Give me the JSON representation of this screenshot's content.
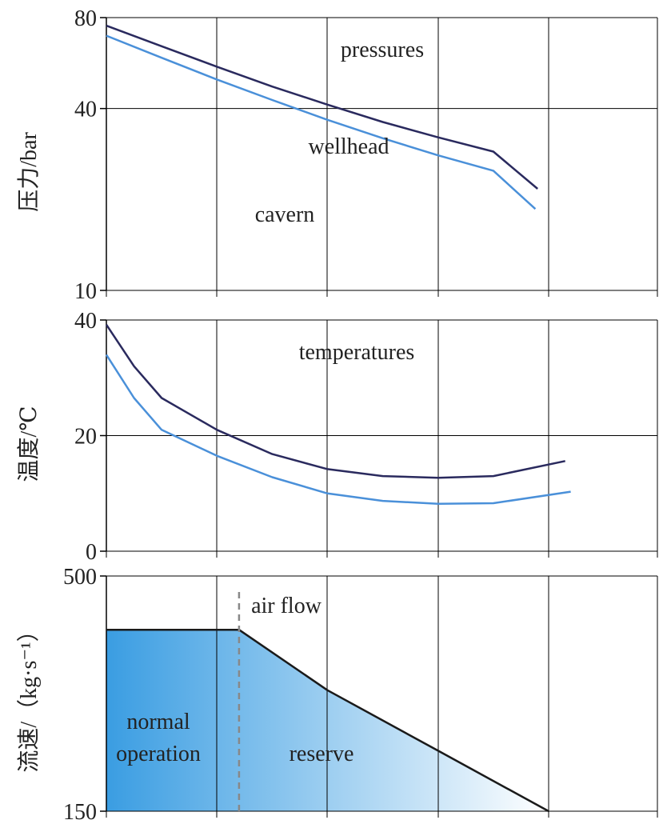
{
  "chart_data": [
    {
      "type": "line",
      "ylabel": "压力/bar",
      "ylim": [
        10,
        80
      ],
      "yticks": [
        80,
        40,
        10
      ],
      "grid": true,
      "annotations": {
        "title": "pressures",
        "wellhead": "wellhead",
        "cavern": "cavern"
      },
      "series": [
        {
          "name": "wellhead",
          "color": "#2a2a5e",
          "x": [
            0,
            0.5,
            1,
            1.5,
            2,
            2.5,
            3,
            3.5,
            3.9
          ],
          "y": [
            75.2,
            64.3,
            55.0,
            47.3,
            41.2,
            36.1,
            32.1,
            28.8,
            21.7
          ]
        },
        {
          "name": "cavern",
          "color": "#4a90d9",
          "x": [
            0,
            0.5,
            1,
            1.5,
            2,
            2.5,
            3,
            3.5,
            3.88
          ],
          "y": [
            69.7,
            58.9,
            49.9,
            42.7,
            36.7,
            31.9,
            28.0,
            24.9,
            18.6
          ]
        }
      ]
    },
    {
      "type": "line",
      "ylabel": "温度/℃",
      "ylim": [
        0,
        40
      ],
      "yticks": [
        40,
        20,
        0
      ],
      "grid": true,
      "annotations": {
        "title": "temperatures"
      },
      "series": [
        {
          "name": "wellhead",
          "color": "#2a2a5e",
          "x": [
            0,
            0.25,
            0.5,
            1,
            1.5,
            2,
            2.5,
            3,
            3.5,
            4.15
          ],
          "y": [
            39.2,
            32.0,
            26.5,
            21.0,
            16.8,
            14.2,
            13.0,
            12.7,
            13.0,
            15.6
          ]
        },
        {
          "name": "cavern",
          "color": "#4a90d9",
          "x": [
            0,
            0.25,
            0.5,
            1,
            1.5,
            2,
            2.5,
            3,
            3.5,
            4.2
          ],
          "y": [
            34.0,
            26.5,
            21.0,
            16.5,
            12.8,
            10.0,
            8.7,
            8.2,
            8.3,
            10.3
          ]
        }
      ]
    },
    {
      "type": "area",
      "ylabel": "流速/（kg·s⁻¹）",
      "ylim": [
        150,
        500
      ],
      "yticks": [
        500,
        150
      ],
      "grid": true,
      "annotations": {
        "title": "air flow",
        "normal1": "normal",
        "normal2": "operation",
        "reserve": "reserve"
      },
      "series": [
        {
          "name": "air flow",
          "color": "#1a1a1a",
          "x": [
            0,
            1.2,
            2,
            3,
            4
          ],
          "y": [
            420,
            420,
            330,
            240,
            150
          ]
        }
      ],
      "transition_x": 1.2
    }
  ],
  "colors": {
    "wellhead": "#2a2a5e",
    "cavern": "#4a90d9",
    "grid": "#000000",
    "area_start": "#3a9de2",
    "area_end": "#ffffff",
    "dash": "#888888"
  }
}
